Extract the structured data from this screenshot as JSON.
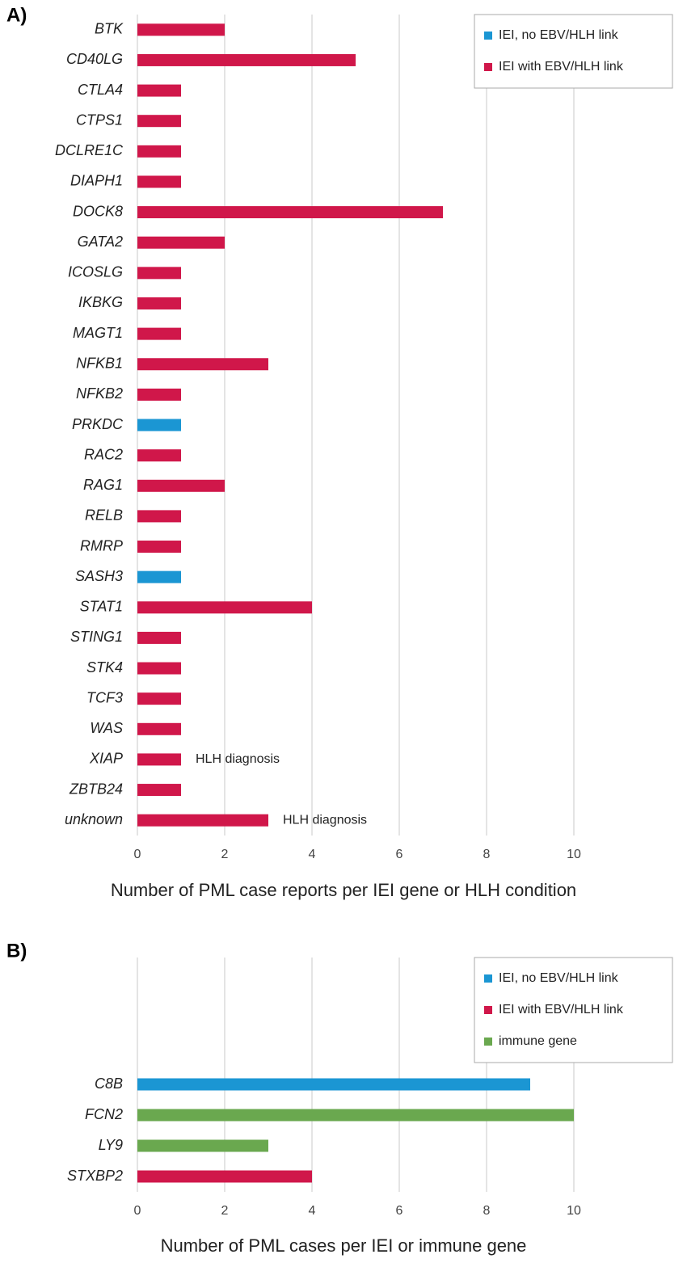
{
  "chart_data": [
    {
      "type": "bar",
      "orientation": "horizontal",
      "label": "A)",
      "xlabel": "Number of PML case reports per IEI gene or HLH condition",
      "categories": [
        "BTK",
        "CD40LG",
        "CTLA4",
        "CTPS1",
        "DCLRE1C",
        "DIAPH1",
        "DOCK8",
        "GATA2",
        "ICOSLG",
        "IKBKG",
        "MAGT1",
        "NFKB1",
        "NFKB2",
        "PRKDC",
        "RAC2",
        "RAG1",
        "RELB",
        "RMRP",
        "SASH3",
        "STAT1",
        "STING1",
        "STK4",
        "TCF3",
        "WAS",
        "XIAP",
        "ZBTB24",
        "unknown"
      ],
      "series": [
        {
          "name": "IEI, no EBV/HLH link",
          "color": "#1b96d3",
          "values": [
            null,
            null,
            null,
            null,
            null,
            null,
            null,
            null,
            null,
            null,
            null,
            null,
            null,
            1,
            null,
            null,
            null,
            null,
            1,
            null,
            null,
            null,
            null,
            null,
            null,
            null,
            null
          ]
        },
        {
          "name": "IEI with EBV/HLH link",
          "color": "#d0174a",
          "values": [
            2,
            5,
            1,
            1,
            1,
            1,
            7,
            2,
            1,
            1,
            1,
            3,
            1,
            null,
            1,
            2,
            1,
            1,
            null,
            4,
            1,
            1,
            1,
            1,
            1,
            1,
            3
          ]
        }
      ],
      "notes": [
        null,
        null,
        null,
        null,
        null,
        null,
        null,
        null,
        null,
        null,
        null,
        null,
        null,
        null,
        null,
        null,
        null,
        null,
        null,
        null,
        null,
        null,
        null,
        null,
        "HLH diagnosis",
        null,
        "HLH diagnosis"
      ],
      "xlim": [
        0,
        11
      ],
      "xticks": [
        0,
        2,
        4,
        6,
        8,
        10
      ],
      "grid": true,
      "legend": "upper right"
    },
    {
      "type": "bar",
      "orientation": "horizontal",
      "label": "B)",
      "xlabel": "Number of PML cases per IEI or immune gene",
      "categories": [
        "C8B",
        "FCN2",
        "LY9",
        "STXBP2"
      ],
      "series": [
        {
          "name": "IEI, no EBV/HLH link",
          "color": "#1b96d3",
          "values": [
            9,
            null,
            null,
            null
          ]
        },
        {
          "name": "IEI with EBV/HLH link",
          "color": "#d0174a",
          "values": [
            null,
            null,
            null,
            4
          ]
        },
        {
          "name": "immune gene",
          "color": "#6aa84f",
          "values": [
            null,
            10,
            3,
            null
          ]
        }
      ],
      "xlim": [
        0,
        11
      ],
      "xticks": [
        0,
        2,
        4,
        6,
        8,
        10
      ],
      "grid": true,
      "legend": "upper right"
    }
  ]
}
